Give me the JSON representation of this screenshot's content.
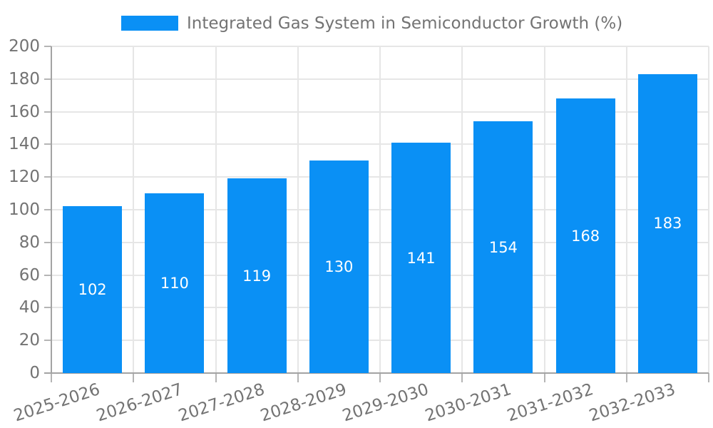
{
  "colors": {
    "background": "#ffffff",
    "bar": "#0a90f5",
    "legend_text": "#737373",
    "axis_text": "#737373",
    "grid_line": "#e6e6e6",
    "axis_line": "#a3a3a3",
    "tick_mark": "#b5b5b5",
    "value_text": "#ffffff"
  },
  "chart_data": {
    "type": "bar",
    "title": "",
    "categories": [
      "2025-2026",
      "2026-2027",
      "2027-2028",
      "2028-2029",
      "2029-2030",
      "2030-2031",
      "2031-2032",
      "2032-2033"
    ],
    "series": [
      {
        "name": "Integrated Gas System in Semiconductor Growth (%)",
        "values": [
          102,
          110,
          119,
          130,
          141,
          154,
          168,
          183
        ]
      }
    ],
    "xlabel": "",
    "ylabel": "",
    "ylim": [
      0,
      200
    ],
    "ytick_step": 20,
    "ytick_labels": [
      "0",
      "20",
      "40",
      "60",
      "80",
      "100",
      "120",
      "140",
      "160",
      "180",
      "200"
    ],
    "grid": true,
    "legend_position": "top-center",
    "x_tick_rotation_deg": -18,
    "value_labels_position": "inside-center"
  }
}
